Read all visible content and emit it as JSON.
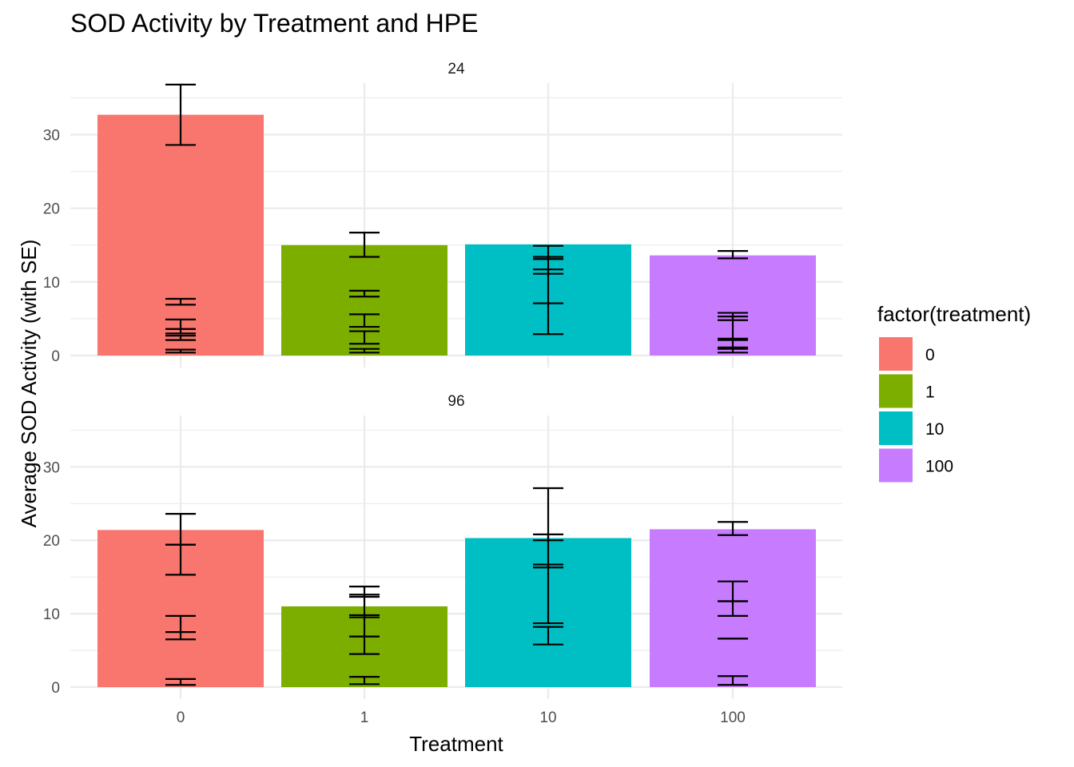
{
  "chart_data": {
    "type": "bar",
    "title": "SOD Activity by Treatment and HPE",
    "xlabel": "Treatment",
    "ylabel": "Average SOD Activity (with SE)",
    "categories": [
      "0",
      "1",
      "10",
      "100"
    ],
    "ylim": [
      0,
      37
    ],
    "yticks": [
      0,
      10,
      20,
      30
    ],
    "grid": true,
    "legend": {
      "title": "factor(treatment)",
      "placement": "right",
      "entries": [
        "0",
        "1",
        "10",
        "100"
      ]
    },
    "colors": [
      "#F8766D",
      "#7CAE00",
      "#00BFC4",
      "#C77CFF"
    ],
    "panels": [
      {
        "label": "24",
        "values": [
          32.7,
          15.0,
          15.1,
          13.6
        ],
        "error_bars": [
          [
            [
              28.6,
              36.8
            ],
            [
              6.9,
              7.7
            ],
            [
              3.6,
              4.9
            ],
            [
              3.0,
              3.6
            ],
            [
              2.1,
              2.7
            ],
            [
              0.4,
              0.8
            ]
          ],
          [
            [
              13.4,
              16.7
            ],
            [
              8.0,
              8.8
            ],
            [
              3.9,
              5.6
            ],
            [
              1.6,
              3.3
            ],
            [
              0.4,
              0.9
            ]
          ],
          [
            [
              13.1,
              14.9
            ],
            [
              11.1,
              13.4
            ],
            [
              2.9,
              11.7
            ],
            [
              7.1,
              7.1
            ]
          ],
          [
            [
              13.2,
              14.2
            ],
            [
              4.8,
              5.8
            ],
            [
              2.3,
              5.3
            ],
            [
              1.1,
              2.1
            ],
            [
              0.4,
              0.9
            ]
          ]
        ]
      },
      {
        "label": "96",
        "values": [
          21.4,
          11.0,
          20.3,
          21.5
        ],
        "error_bars": [
          [
            [
              19.4,
              23.6
            ],
            [
              15.3,
              19.4
            ],
            [
              7.5,
              9.7
            ],
            [
              6.5,
              7.5
            ],
            [
              0.3,
              1.1
            ]
          ],
          [
            [
              12.3,
              13.7
            ],
            [
              9.5,
              12.6
            ],
            [
              6.9,
              9.8
            ],
            [
              4.5,
              6.9
            ],
            [
              0.4,
              1.4
            ]
          ],
          [
            [
              20.0,
              27.1
            ],
            [
              16.3,
              20.8
            ],
            [
              8.7,
              16.7
            ],
            [
              5.8,
              8.2
            ]
          ],
          [
            [
              20.7,
              22.5
            ],
            [
              11.7,
              14.4
            ],
            [
              9.7,
              11.7
            ],
            [
              6.6,
              6.6
            ],
            [
              0.3,
              1.5
            ]
          ]
        ]
      }
    ]
  }
}
